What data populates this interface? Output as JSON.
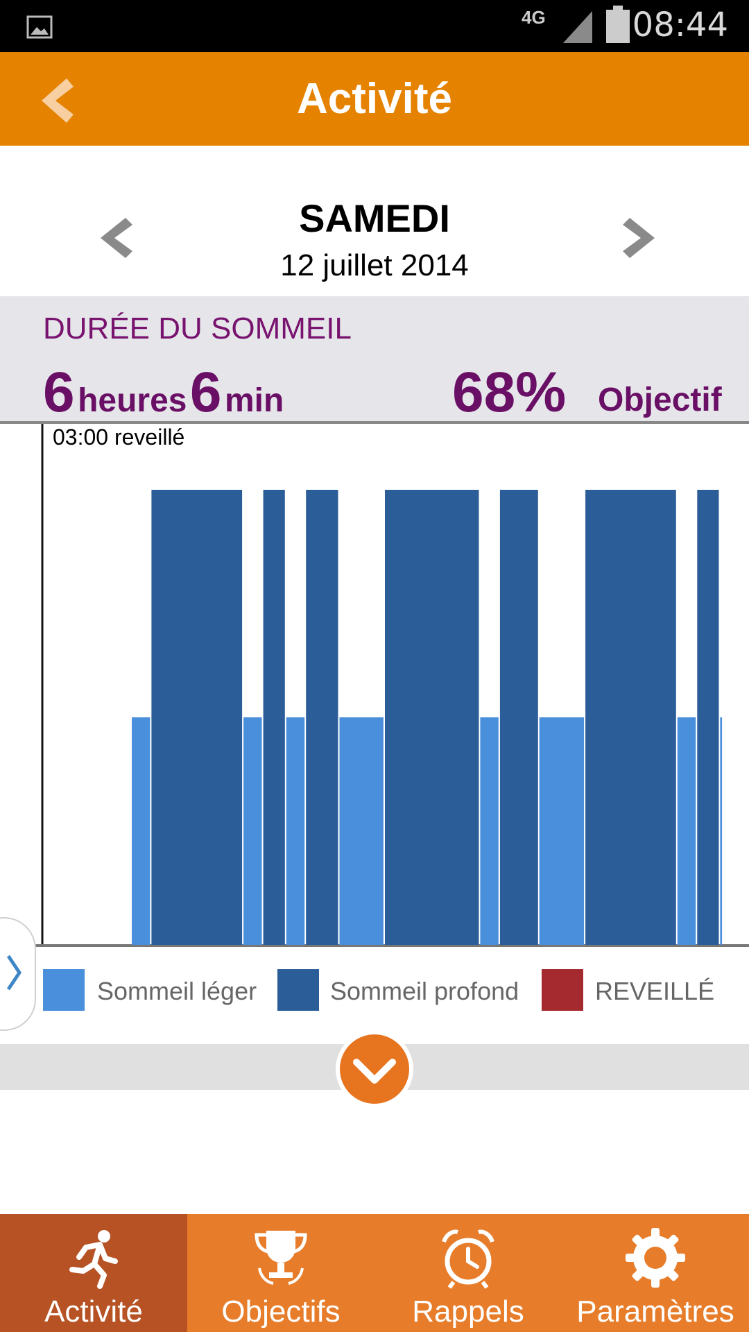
{
  "status_bar": {
    "time": "08:44",
    "network": "4G",
    "icons": [
      "image-icon",
      "signal-icon",
      "battery-icon"
    ]
  },
  "header": {
    "title": "Activité",
    "back_icon": "chevron-left-icon"
  },
  "date_nav": {
    "day": "SAMEDI",
    "date": "12 juillet 2014",
    "prev_icon": "chevron-left-icon",
    "next_icon": "chevron-right-icon"
  },
  "summary": {
    "title": "DURÉE DU SOMMEIL",
    "hours": "6",
    "hours_label": "heures",
    "minutes": "6",
    "minutes_label": "min",
    "percent": "68%",
    "goal_label": "Objectif"
  },
  "chart_data": {
    "type": "bar",
    "annotation": "03:00 reveillé",
    "levels": {
      "light": 1,
      "deep": 2,
      "awake": 3
    },
    "segments": [
      {
        "stage": "light",
        "start": 0.135,
        "end": 0.165
      },
      {
        "stage": "deep",
        "start": 0.165,
        "end": 0.305
      },
      {
        "stage": "light",
        "start": 0.305,
        "end": 0.335
      },
      {
        "stage": "deep",
        "start": 0.335,
        "end": 0.37
      },
      {
        "stage": "light",
        "start": 0.37,
        "end": 0.4
      },
      {
        "stage": "deep",
        "start": 0.4,
        "end": 0.451
      },
      {
        "stage": "light",
        "start": 0.451,
        "end": 0.52
      },
      {
        "stage": "deep",
        "start": 0.52,
        "end": 0.665
      },
      {
        "stage": "light",
        "start": 0.665,
        "end": 0.695
      },
      {
        "stage": "deep",
        "start": 0.695,
        "end": 0.755
      },
      {
        "stage": "light",
        "start": 0.755,
        "end": 0.825
      },
      {
        "stage": "deep",
        "start": 0.825,
        "end": 0.965
      },
      {
        "stage": "light",
        "start": 0.965,
        "end": 0.995
      },
      {
        "stage": "deep",
        "start": 0.995,
        "end": 1.03
      },
      {
        "stage": "light",
        "start": 1.03,
        "end": 1.035
      }
    ],
    "colors": {
      "light": "#4a8fdc",
      "deep": "#2b5e99",
      "awake": "#a52a2f"
    }
  },
  "legend": {
    "items": [
      {
        "label": "Sommeil léger",
        "color": "#4a8fdc"
      },
      {
        "label": "Sommeil profond",
        "color": "#2b5e99"
      },
      {
        "label": "REVEILLÉ",
        "color": "#a52a2f"
      }
    ]
  },
  "controls": {
    "side_tab_icon": "chevron-right-icon",
    "expand_icon": "chevron-down-icon"
  },
  "tabs": [
    {
      "label": "Activité",
      "icon": "runner-icon",
      "active": true
    },
    {
      "label": "Objectifs",
      "icon": "trophy-icon",
      "active": false
    },
    {
      "label": "Rappels",
      "icon": "alarm-clock-icon",
      "active": false
    },
    {
      "label": "Paramètres",
      "icon": "gear-icon",
      "active": false
    }
  ],
  "theme": {
    "accent": "#e58200",
    "tabbar": "#e77d2b",
    "tab_active": "#b65224",
    "summary_text": "#6a0f66"
  }
}
